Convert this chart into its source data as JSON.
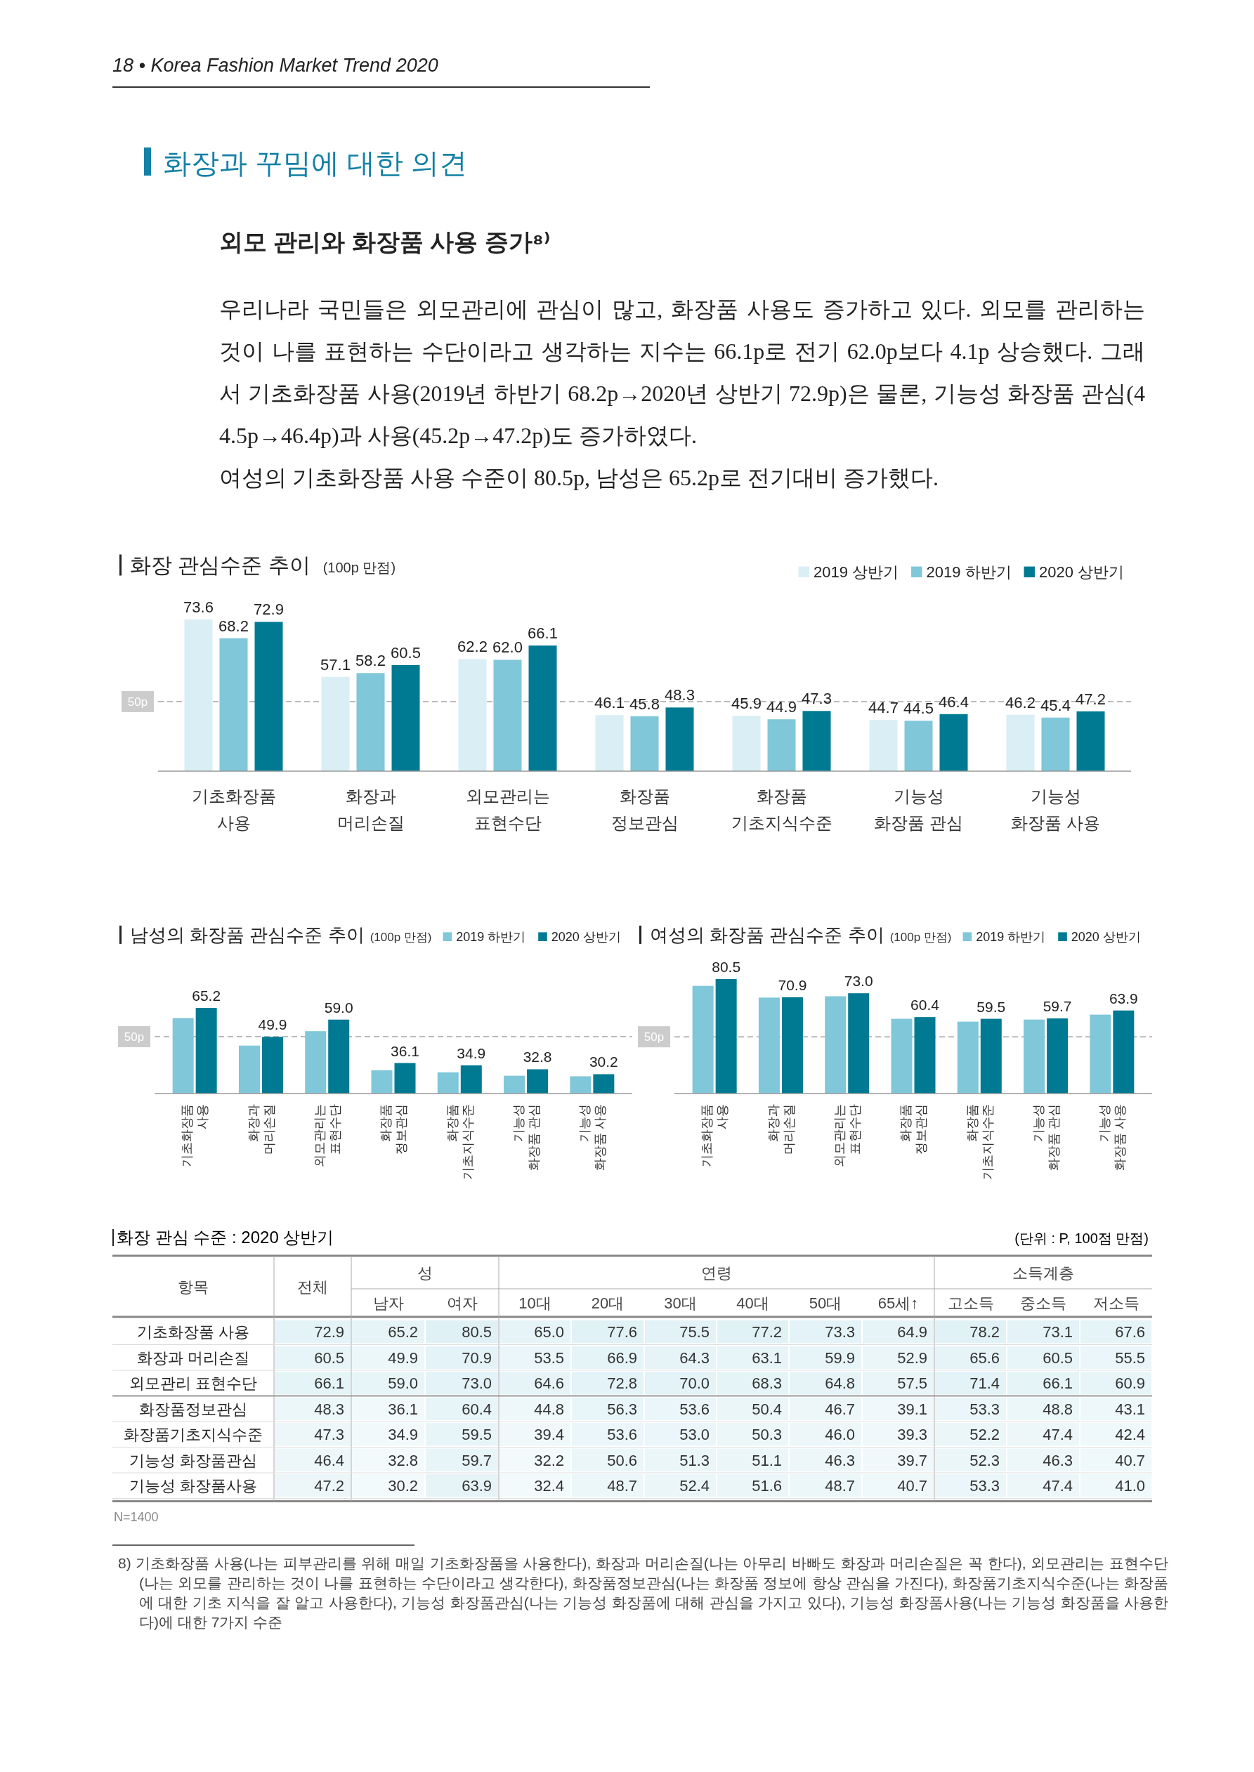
{
  "chart_data": [
    {
      "type": "bar",
      "title": "화장 관심수준 추이",
      "subtitle": "(100p 만점)",
      "categories": [
        "기초화장품 사용",
        "화장과 머리손질",
        "외모관리는 표현수단",
        "화장품 정보관심",
        "화장품 기초지식수준",
        "기능성 화장품 관심",
        "기능성 화장품 사용"
      ],
      "series": [
        {
          "name": "2019 상반기",
          "color": "#d9eef5",
          "values": [
            73.6,
            57.1,
            62.2,
            46.1,
            45.9,
            44.7,
            46.2
          ],
          "value_labels": [
            "73.6",
            "57.1",
            "62.2",
            "46.1",
            "45.9",
            "44.7",
            "46.2"
          ]
        },
        {
          "name": "2019 하반기",
          "color": "#7fc7d9",
          "values": [
            68.2,
            58.2,
            62.0,
            45.8,
            44.9,
            44.5,
            45.4
          ],
          "value_labels": [
            "68.2",
            "58.2",
            "62.0",
            "45.8",
            "44.9",
            "44.5",
            "45.4"
          ]
        },
        {
          "name": "2020 상반기",
          "color": "#007a92",
          "values": [
            72.9,
            60.5,
            66.1,
            48.3,
            47.3,
            46.4,
            47.2
          ],
          "value_labels": [
            "72.9",
            "60.5",
            "66.1",
            "48.3",
            "47.3",
            "46.4",
            "47.2"
          ]
        }
      ],
      "ylim": [
        30,
        73.6
      ],
      "tick_labels": "x",
      "legend": "top right",
      "ref_lines": [
        {
          "axis": "y",
          "value": 50,
          "label": "50p",
          "color": "#bbbbbb",
          "line_style": "dashed"
        }
      ],
      "annotations": [
        "18 • Korea Fashion Market Trend 2020",
        "화장과 꾸밈에 대한 의견",
        "외모 관리와 화장품 사용 증가⁸⁾",
        "우리나라 국민들은 외모관리에 관심이 많고, 화장품 사용도 증가하고 있다. 외모를 관리하는 것이 나를 표현하는 수단이라고 생각하는 지수는 66.1p로 전기 62.0p보다 4.1p 상승했다. 그래서 기초화장품 사용(2019년 하반기 68.2p→2020년 상반기 72.9p)은 물론, 기능성 화장품 관심(44.5p→46.4p)과 사용(45.2p→47.2p)도 증가하였다.\n여성의 기초화장품 사용 수준이 80.5p, 남성은 65.2p로 전기대비 증가했다."
      ]
    },
    {
      "type": "bar",
      "title": "남성의 화장품 관심수준 추이",
      "subtitle": "(100p 만점)",
      "categories": [
        "기초화장품 사용",
        "화장과 머리손질",
        "외모관리는 표현수단",
        "화장품 정보관심",
        "화장품 기초지식수준",
        "기능성 화장품 관심",
        "기능성 화장품 사용"
      ],
      "series": [
        {
          "name": "2019 하반기",
          "color": "#7fc7d9",
          "values": [
            59.8,
            45.3,
            52.9,
            32.3,
            31.2,
            29.4,
            29.1
          ],
          "value_labels": [
            null,
            null,
            null,
            null,
            null,
            null,
            null
          ]
        },
        {
          "name": "2020 상반기",
          "color": "#007a92",
          "values": [
            65.2,
            49.9,
            59.0,
            36.1,
            34.9,
            32.8,
            30.2
          ],
          "value_labels": [
            "65.2",
            "49.9",
            "59.0",
            "36.1",
            "34.9",
            "32.8",
            "30.2"
          ]
        }
      ],
      "ylim": [
        20,
        65.2
      ],
      "tick_labels": "x",
      "legend": "top",
      "ref_lines": [
        {
          "axis": "y",
          "value": 50,
          "label": "50p",
          "color": "#bbbbbb",
          "line_style": "dashed"
        }
      ]
    },
    {
      "type": "bar",
      "title": "여성의 화장품 관심수준 추이",
      "subtitle": "(100p 만점)",
      "categories": [
        "기초화장품 사용",
        "화장과 머리손질",
        "외모관리는 표현수단",
        "화장품 정보관심",
        "화장품 기초지식수준",
        "기능성 화장품 관심",
        "기능성 화장품 사용"
      ],
      "series": [
        {
          "name": "2019 하반기",
          "color": "#7fc7d9",
          "values": [
            76.9,
            70.7,
            71.4,
            59.5,
            58.0,
            59.1,
            61.7
          ],
          "value_labels": [
            null,
            null,
            null,
            null,
            null,
            null,
            null
          ]
        },
        {
          "name": "2020 상반기",
          "color": "#007a92",
          "values": [
            80.5,
            70.9,
            73.0,
            60.4,
            59.5,
            59.7,
            63.9
          ],
          "value_labels": [
            "80.5",
            "70.9",
            "73.0",
            "60.4",
            "59.5",
            "59.7",
            "63.9"
          ]
        }
      ],
      "ylim": [
        20,
        80.5
      ],
      "tick_labels": "x",
      "legend": "top",
      "ref_lines": [
        {
          "axis": "y",
          "value": 50,
          "label": "50p",
          "color": "#bbbbbb",
          "line_style": "dashed"
        }
      ]
    },
    {
      "type": "heatmap",
      "title": "화장 관심 수준 : 2020 상반기",
      "subtitle": "(단위 : P, 100점 만점)",
      "categories": [
        "전체",
        "남자",
        "여자",
        "10대",
        "20대",
        "30대",
        "40대",
        "50대",
        "65세↑",
        "고소득",
        "중소득",
        "저소득"
      ],
      "y_categories": [
        "기초화장품 사용",
        "화장과 머리손질",
        "외모관리 표현수단",
        "화장품정보관심",
        "화장품기초지식수준",
        "기능성 화장품관심",
        "기능성 화장품사용"
      ],
      "cells": [
        [
          72.9,
          65.2,
          80.5,
          65.0,
          77.6,
          75.5,
          77.2,
          73.3,
          64.9,
          78.2,
          73.1,
          67.6
        ],
        [
          60.5,
          49.9,
          70.9,
          53.5,
          66.9,
          64.3,
          63.1,
          59.9,
          52.9,
          65.6,
          60.5,
          55.5
        ],
        [
          66.1,
          59.0,
          73.0,
          64.6,
          72.8,
          70.0,
          68.3,
          64.8,
          57.5,
          71.4,
          66.1,
          60.9
        ],
        [
          48.3,
          36.1,
          60.4,
          44.8,
          56.3,
          53.6,
          50.4,
          46.7,
          39.1,
          53.3,
          48.8,
          43.1
        ],
        [
          47.3,
          34.9,
          59.5,
          39.4,
          53.6,
          53.0,
          50.3,
          46.0,
          39.3,
          52.2,
          47.4,
          42.4
        ],
        [
          46.4,
          32.8,
          59.7,
          32.2,
          50.6,
          51.3,
          51.1,
          46.3,
          39.7,
          52.3,
          46.3,
          40.7
        ],
        [
          47.2,
          30.2,
          63.9,
          32.4,
          48.7,
          52.4,
          51.6,
          48.7,
          40.7,
          53.3,
          47.4,
          41.0
        ]
      ],
      "cell_labels": [
        [
          "72.9",
          "65.2",
          "80.5",
          "65.0",
          "77.6",
          "75.5",
          "77.2",
          "73.3",
          "64.9",
          "78.2",
          "73.1",
          "67.6"
        ],
        [
          "60.5",
          "49.9",
          "70.9",
          "53.5",
          "66.9",
          "64.3",
          "63.1",
          "59.9",
          "52.9",
          "65.6",
          "60.5",
          "55.5"
        ],
        [
          "66.1",
          "59.0",
          "73.0",
          "64.6",
          "72.8",
          "70.0",
          "68.3",
          "64.8",
          "57.5",
          "71.4",
          "66.1",
          "60.9"
        ],
        [
          "48.3",
          "36.1",
          "60.4",
          "44.8",
          "56.3",
          "53.6",
          "50.4",
          "46.7",
          "39.1",
          "53.3",
          "48.8",
          "43.1"
        ],
        [
          "47.3",
          "34.9",
          "59.5",
          "39.4",
          "53.6",
          "53.0",
          "50.3",
          "46.0",
          "39.3",
          "52.2",
          "47.4",
          "42.4"
        ],
        [
          "46.4",
          "32.8",
          "59.7",
          "32.2",
          "50.6",
          "51.3",
          "51.1",
          "46.3",
          "39.7",
          "52.3",
          "46.3",
          "40.7"
        ],
        [
          "47.2",
          "30.2",
          "63.9",
          "32.4",
          "48.7",
          "52.4",
          "51.6",
          "48.7",
          "40.7",
          "53.3",
          "47.4",
          "41.0"
        ]
      ],
      "annotations": [
        "항목",
        "성",
        "연령",
        "소득계층",
        "N=1400",
        "8) 기초화장품 사용(나는 피부관리를 위해 매일 기초화장품을 사용한다), 화장과 머리손질(나는 아무리 바빠도 화장과 머리손질은 꼭 한다), 외모관리는 표현수단(나는 외모를 관리하는 것이 나를 표현하는 수단이라고 생각한다), 화장품정보관심(나는 화장품 정보에 항상 관심을 가진다), 화장품기초지식수준(나는 화장품에 대한 기초 지식을 잘 알고 사용한다), 기능성 화장품관심(나는 기능성 화장품에 대해 관심을 가지고 있다), 기능성 화장품사용(나는 기능성 화장품을 사용한다)에 대한 7가지 수준"
      ]
    }
  ]
}
